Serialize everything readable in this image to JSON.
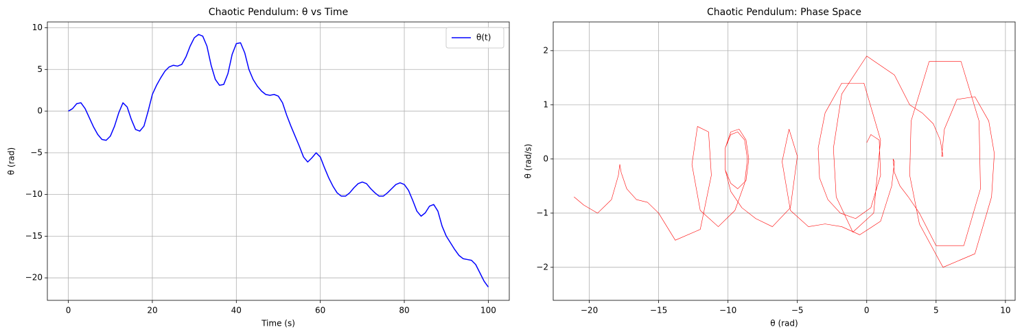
{
  "chart_data": [
    {
      "type": "line",
      "title": "Chaotic Pendulum: θ vs Time",
      "x_label": "Time (s)",
      "y_label": "θ (rad)",
      "x": [
        0,
        1,
        2,
        3,
        4,
        5,
        6,
        7,
        8,
        9,
        10,
        11,
        12,
        13,
        14,
        15,
        16,
        17,
        18,
        19,
        20,
        21,
        22,
        23,
        24,
        25,
        26,
        27,
        28,
        29,
        30,
        31,
        32,
        33,
        34,
        35,
        36,
        37,
        38,
        39,
        40,
        41,
        42,
        43,
        44,
        45,
        46,
        47,
        48,
        49,
        50,
        51,
        52,
        53,
        54,
        55,
        56,
        57,
        58,
        59,
        60,
        61,
        62,
        63,
        64,
        65,
        66,
        67,
        68,
        69,
        70,
        71,
        72,
        73,
        74,
        75,
        76,
        77,
        78,
        79,
        80,
        81,
        82,
        83,
        84,
        85,
        86,
        87,
        88,
        89,
        90,
        91,
        92,
        93,
        94,
        95,
        96,
        97,
        98,
        99,
        100
      ],
      "series": [
        {
          "name": "θ(t)",
          "color": "#0000ff",
          "values": [
            0,
            0.3,
            0.9,
            1.0,
            0.3,
            -0.8,
            -1.9,
            -2.8,
            -3.4,
            -3.5,
            -3.0,
            -1.8,
            -0.2,
            1.0,
            0.5,
            -1.0,
            -2.2,
            -2.4,
            -1.8,
            0.0,
            2.0,
            3.1,
            4.0,
            4.8,
            5.3,
            5.5,
            5.4,
            5.6,
            6.5,
            7.8,
            8.8,
            9.2,
            9.0,
            7.8,
            5.5,
            3.8,
            3.1,
            3.2,
            4.5,
            6.8,
            8.1,
            8.2,
            7.0,
            5.0,
            3.8,
            3.0,
            2.4,
            2.0,
            1.9,
            2.0,
            1.8,
            1.0,
            -0.5,
            -1.8,
            -3.0,
            -4.2,
            -5.5,
            -6.1,
            -5.6,
            -5.0,
            -5.5,
            -6.8,
            -8.0,
            -9.0,
            -9.8,
            -10.2,
            -10.2,
            -9.8,
            -9.2,
            -8.7,
            -8.5,
            -8.7,
            -9.3,
            -9.8,
            -10.2,
            -10.2,
            -9.8,
            -9.3,
            -8.8,
            -8.6,
            -8.8,
            -9.5,
            -10.7,
            -12.0,
            -12.6,
            -12.2,
            -11.4,
            -11.2,
            -12.0,
            -13.8,
            -15.0,
            -15.8,
            -16.6,
            -17.3,
            -17.7,
            -17.8,
            -17.9,
            -18.4,
            -19.4,
            -20.4,
            -21.1
          ]
        }
      ],
      "xlim": [
        -5,
        105
      ],
      "ylim": [
        -22.7,
        10.7
      ],
      "xticks": [
        0,
        20,
        40,
        60,
        80,
        100
      ],
      "yticks": [
        {
          "value": -20,
          "label": "−20"
        },
        {
          "value": -15,
          "label": "−15"
        },
        {
          "value": -10,
          "label": "−10"
        },
        {
          "value": -5,
          "label": "−5"
        },
        0,
        5,
        10
      ],
      "grid": true,
      "legend": "upper right",
      "line_width": 1.5
    },
    {
      "type": "line",
      "title": "Chaotic Pendulum: Phase Space",
      "x_label": "θ (rad)",
      "y_label": "θ (rad/s)",
      "x": [
        0,
        0.3,
        0.9,
        1.0,
        0.3,
        -0.8,
        -1.9,
        -2.8,
        -3.4,
        -3.5,
        -3.0,
        -1.8,
        -0.2,
        1.0,
        0.5,
        -1.0,
        -2.2,
        -2.4,
        -1.8,
        0.0,
        2.0,
        3.1,
        4.0,
        4.8,
        5.3,
        5.5,
        5.4,
        5.6,
        6.5,
        7.8,
        8.8,
        9.2,
        9.0,
        7.8,
        5.5,
        3.8,
        3.1,
        3.2,
        4.5,
        6.8,
        8.1,
        8.2,
        7.0,
        5.0,
        3.8,
        3.0,
        2.4,
        2.0,
        1.9,
        2.0,
        1.8,
        1.0,
        -0.5,
        -1.8,
        -3.0,
        -4.2,
        -5.5,
        -6.1,
        -5.6,
        -5.0,
        -5.5,
        -6.8,
        -8.0,
        -9.0,
        -9.8,
        -10.2,
        -10.2,
        -9.8,
        -9.2,
        -8.7,
        -8.5,
        -8.7,
        -9.3,
        -9.8,
        -10.2,
        -10.2,
        -9.8,
        -9.3,
        -8.8,
        -8.6,
        -8.8,
        -9.5,
        -10.7,
        -12.0,
        -12.6,
        -12.2,
        -11.4,
        -11.2,
        -12.0,
        -13.8,
        -15.0,
        -15.8,
        -16.6,
        -17.3,
        -17.7,
        -17.8,
        -17.9,
        -18.4,
        -19.4,
        -20.4,
        -21.1
      ],
      "series": [
        {
          "color": "#ff0000",
          "values": [
            0.3,
            0.45,
            0.35,
            -0.3,
            -0.9,
            -1.1,
            -1.0,
            -0.75,
            -0.35,
            0.2,
            0.85,
            1.4,
            1.4,
            0.35,
            -1.0,
            -1.35,
            -0.7,
            0.2,
            1.2,
            1.9,
            1.55,
            1.0,
            0.85,
            0.65,
            0.35,
            0.05,
            0.05,
            0.55,
            1.1,
            1.15,
            0.7,
            0.1,
            -0.7,
            -1.75,
            -2.0,
            -1.2,
            -0.3,
            0.7,
            1.8,
            1.8,
            0.7,
            -0.55,
            -1.6,
            -1.6,
            -1.0,
            -0.7,
            -0.5,
            -0.25,
            0.0,
            -0.05,
            -0.5,
            -1.15,
            -1.4,
            -1.25,
            -1.2,
            -1.25,
            -0.95,
            -0.05,
            0.55,
            0.05,
            -0.9,
            -1.25,
            -1.1,
            -0.9,
            -0.6,
            -0.2,
            0.2,
            0.5,
            0.55,
            0.35,
            0.0,
            -0.4,
            -0.55,
            -0.45,
            -0.2,
            0.2,
            0.45,
            0.5,
            0.35,
            0.0,
            -0.45,
            -0.95,
            -1.25,
            -0.95,
            -0.1,
            0.6,
            0.5,
            -0.3,
            -1.3,
            -1.5,
            -1.0,
            -0.8,
            -0.75,
            -0.55,
            -0.25,
            -0.1,
            -0.3,
            -0.75,
            -1.0,
            -0.85,
            -0.7
          ]
        }
      ],
      "xlim": [
        -22.6,
        10.7
      ],
      "ylim": [
        -2.61,
        2.53
      ],
      "xticks": [
        {
          "value": -20,
          "label": "−20"
        },
        {
          "value": -15,
          "label": "−15"
        },
        {
          "value": -10,
          "label": "−10"
        },
        {
          "value": -5,
          "label": "−5"
        },
        0,
        5,
        10
      ],
      "yticks": [
        {
          "value": -2,
          "label": "−2"
        },
        {
          "value": -1,
          "label": "−1"
        },
        0,
        1,
        2
      ],
      "grid": true,
      "line_width": 0.6
    }
  ]
}
